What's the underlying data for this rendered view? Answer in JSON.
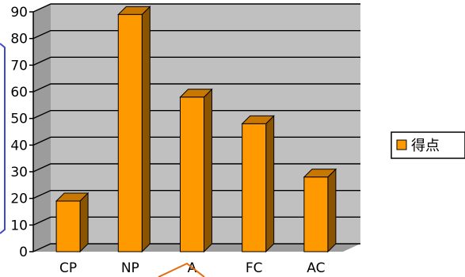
{
  "chart_data": {
    "type": "bar",
    "categories": [
      "CP",
      "NP",
      "A",
      "FC",
      "AC"
    ],
    "series": [
      {
        "name": "得点",
        "values": [
          19,
          89,
          58,
          48,
          28
        ]
      }
    ],
    "ylim": [
      0,
      90
    ],
    "yticks": [
      0,
      10,
      20,
      30,
      40,
      50,
      60,
      70,
      80,
      90
    ],
    "grid": true,
    "legend_position": "right",
    "three_d": true
  },
  "colors": {
    "bar_front": "#FF9900",
    "bar_top": "#C87800",
    "bar_side": "#8A5400",
    "wall": "#C0C0C0",
    "floor": "#9C9C9C",
    "gridline": "#000000",
    "left_panel_border": "#3F48CC",
    "annotation": "#E46C0A"
  }
}
